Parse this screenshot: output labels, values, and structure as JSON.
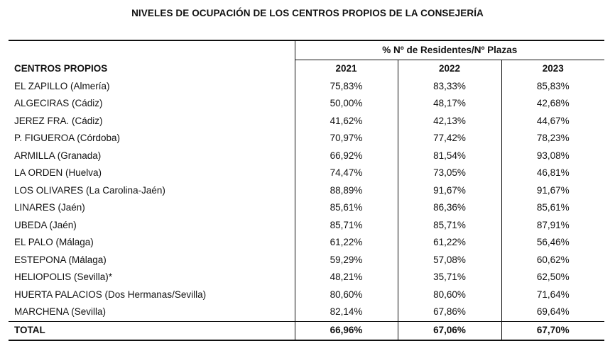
{
  "title": "NIVELES DE OCUPACIÓN DE LOS CENTROS PROPIOS DE LA CONSEJERÍA",
  "table": {
    "group_header": "% Nº de Residentes/Nº Plazas",
    "name_header": "CENTROS PROPIOS",
    "years": [
      "2021",
      "2022",
      "2023"
    ],
    "rows": [
      {
        "name": "EL ZAPILLO (Almería)",
        "values": [
          "75,83%",
          "83,33%",
          "85,83%"
        ]
      },
      {
        "name": "ALGECIRAS (Cádiz)",
        "values": [
          "50,00%",
          "48,17%",
          "42,68%"
        ]
      },
      {
        "name": "JEREZ FRA. (Cádiz)",
        "values": [
          "41,62%",
          "42,13%",
          "44,67%"
        ]
      },
      {
        "name": "P. FIGUEROA (Córdoba)",
        "values": [
          "70,97%",
          "77,42%",
          "78,23%"
        ]
      },
      {
        "name": "ARMILLA (Granada)",
        "values": [
          "66,92%",
          "81,54%",
          "93,08%"
        ]
      },
      {
        "name": "LA ORDEN (Huelva)",
        "values": [
          "74,47%",
          "73,05%",
          "46,81%"
        ]
      },
      {
        "name": "LOS OLIVARES (La Carolina-Jaén)",
        "values": [
          "88,89%",
          "91,67%",
          "91,67%"
        ]
      },
      {
        "name": "LINARES (Jaén)",
        "values": [
          "85,61%",
          "86,36%",
          "85,61%"
        ]
      },
      {
        "name": "UBEDA (Jaén)",
        "values": [
          "85,71%",
          "85,71%",
          "87,91%"
        ]
      },
      {
        "name": "EL PALO (Málaga)",
        "values": [
          "61,22%",
          "61,22%",
          "56,46%"
        ]
      },
      {
        "name": "ESTEPONA (Málaga)",
        "values": [
          "59,29%",
          "57,08%",
          "60,62%"
        ]
      },
      {
        "name": "HELIOPOLIS (Sevilla)*",
        "values": [
          "48,21%",
          "35,71%",
          "62,50%"
        ]
      },
      {
        "name": "HUERTA PALACIOS (Dos Hermanas/Sevilla)",
        "values": [
          "80,60%",
          "80,60%",
          "71,64%"
        ]
      },
      {
        "name": "MARCHENA (Sevilla)",
        "values": [
          "82,14%",
          "67,86%",
          "69,64%"
        ]
      }
    ],
    "total": {
      "name": "TOTAL",
      "values": [
        "66,96%",
        "67,06%",
        "67,70%"
      ]
    }
  }
}
